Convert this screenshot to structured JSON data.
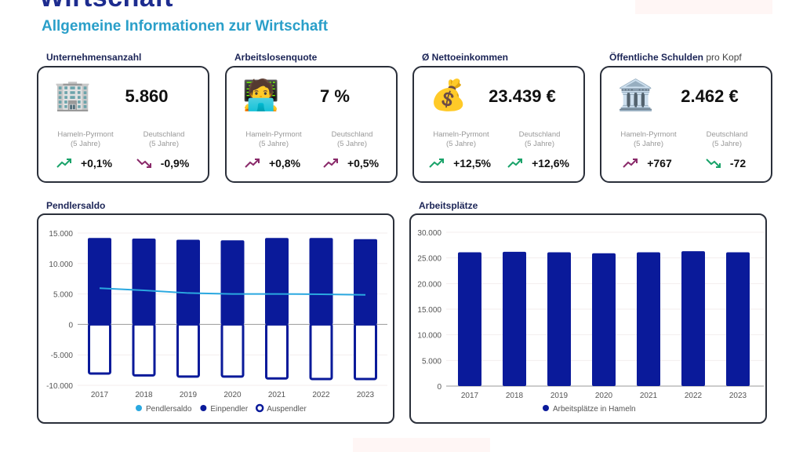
{
  "header": {
    "title": "Wirtschaft",
    "subtitle": "Allgemeine Informationen zur Wirtschaft"
  },
  "kpis": [
    {
      "label": "Unternehmensanzahl",
      "label_suffix": "",
      "icon": "office-building-icon",
      "glyph": "🏢",
      "value": "5.860",
      "regions": [
        {
          "name": "Hameln-Pyrmont",
          "period": "(5 Jahre)",
          "trend": "up",
          "color": "#1aa36a",
          "change": "+0,1%"
        },
        {
          "name": "Deutschland",
          "period": "(5 Jahre)",
          "trend": "down",
          "color": "#8a2a6a",
          "change": "-0,9%"
        }
      ]
    },
    {
      "label": "Arbeitslosenquote",
      "label_suffix": "",
      "icon": "person-laptop-icon",
      "glyph": "🧑‍💻",
      "value": "7 %",
      "regions": [
        {
          "name": "Hameln-Pyrmont",
          "period": "(5 Jahre)",
          "trend": "up",
          "color": "#8a2a6a",
          "change": "+0,8%"
        },
        {
          "name": "Deutschland",
          "period": "(5 Jahre)",
          "trend": "up",
          "color": "#8a2a6a",
          "change": "+0,5%"
        }
      ]
    },
    {
      "label": "Ø Nettoeinkommen",
      "label_suffix": "",
      "icon": "money-bag-icon",
      "glyph": "💰",
      "value": "23.439 €",
      "regions": [
        {
          "name": "Hameln-Pyrmont",
          "period": "(5 Jahre)",
          "trend": "up",
          "color": "#1aa36a",
          "change": "+12,5%"
        },
        {
          "name": "Deutschland",
          "period": "(5 Jahre)",
          "trend": "up",
          "color": "#1aa36a",
          "change": "+12,6%"
        }
      ]
    },
    {
      "label": "Öffentliche Schulden",
      "label_suffix": "pro Kopf",
      "icon": "bank-building-icon",
      "glyph": "🏛️",
      "value": "2.462 €",
      "regions": [
        {
          "name": "Hameln-Pyrmont",
          "period": "(5 Jahre)",
          "trend": "up",
          "color": "#8a2a6a",
          "change": "+767"
        },
        {
          "name": "Deutschland",
          "period": "(5 Jahre)",
          "trend": "down",
          "color": "#1aa36a",
          "change": "-72"
        }
      ]
    }
  ],
  "chart_data": [
    {
      "type": "bar",
      "title": "Pendlersaldo",
      "categories": [
        "2017",
        "2018",
        "2019",
        "2020",
        "2021",
        "2022",
        "2023"
      ],
      "ylim": [
        -10000,
        15000
      ],
      "yticks": [
        -10000,
        -5000,
        0,
        5000,
        10000,
        15000
      ],
      "ytick_labels": [
        "-10.000",
        "-5.000",
        "0",
        "5.000",
        "10.000",
        "15.000"
      ],
      "series": [
        {
          "name": "Pendlersaldo",
          "kind": "line",
          "color": "#2aa8e0",
          "values": [
            5950,
            5600,
            5150,
            5000,
            5000,
            4950,
            4850
          ]
        },
        {
          "name": "Einpendler",
          "kind": "bar",
          "color": "#0a1a9a",
          "values": [
            14200,
            14100,
            13900,
            13800,
            14200,
            14200,
            14000
          ]
        },
        {
          "name": "Auspendler",
          "kind": "bar-outline",
          "color": "#0a1a9a",
          "values": [
            -8200,
            -8500,
            -8700,
            -8700,
            -9000,
            -9100,
            -9100
          ]
        }
      ],
      "legend": "bottom"
    },
    {
      "type": "bar",
      "title": "Arbeitsplätze",
      "categories": [
        "2017",
        "2018",
        "2019",
        "2020",
        "2021",
        "2022",
        "2023"
      ],
      "ylim": [
        0,
        30000
      ],
      "yticks": [
        0,
        5000,
        10000,
        15000,
        20000,
        25000,
        30000
      ],
      "ytick_labels": [
        "0",
        "5.000",
        "10.000",
        "15.000",
        "20.000",
        "25.000",
        "30.000"
      ],
      "series": [
        {
          "name": "Arbeitsplätze in Hameln",
          "kind": "bar",
          "color": "#0a1a9a",
          "values": [
            26100,
            26200,
            26100,
            25900,
            26100,
            26300,
            26100
          ]
        }
      ],
      "legend": "bottom"
    }
  ]
}
